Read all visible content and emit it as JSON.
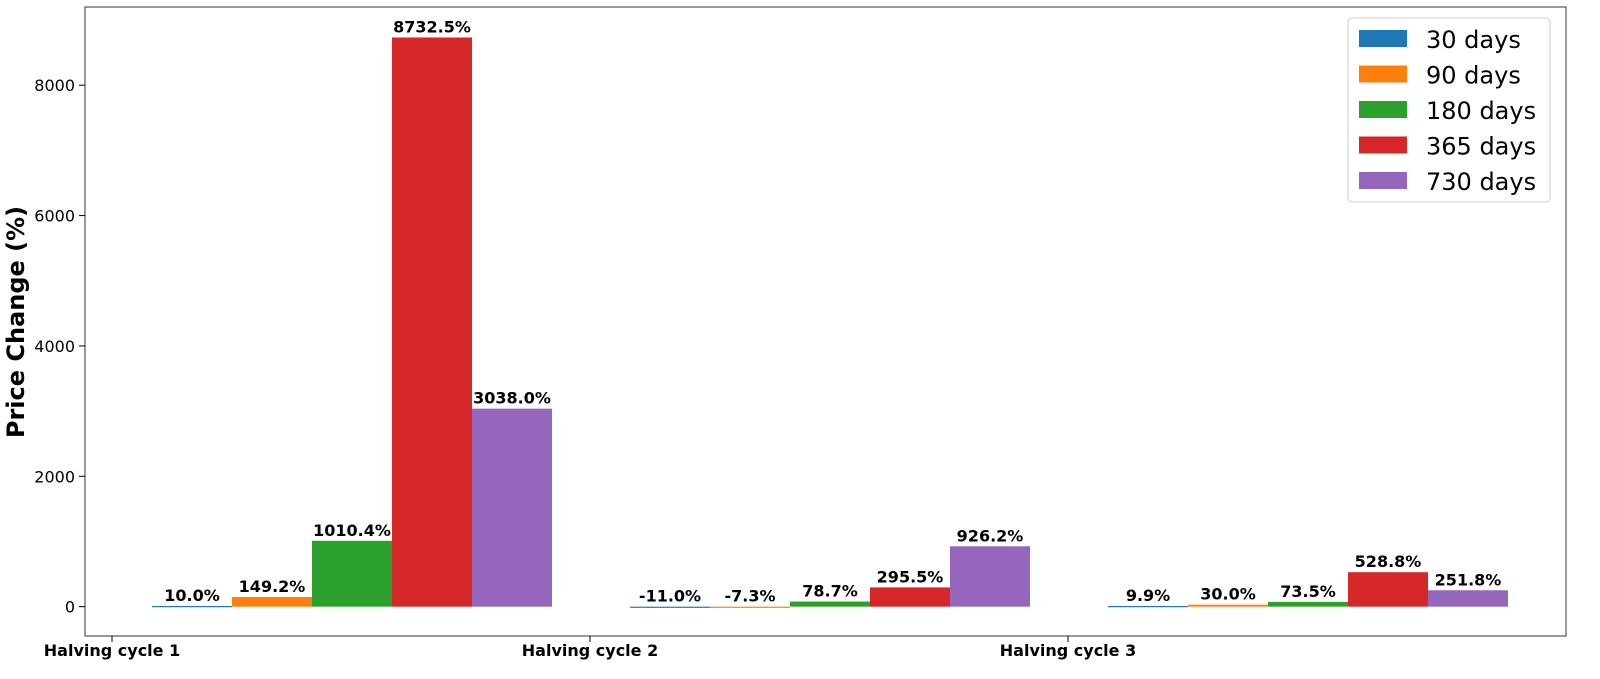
{
  "chart_data": {
    "type": "bar",
    "title": "",
    "xlabel": "",
    "ylabel": "Price Change (%)",
    "categories": [
      "Halving cycle 1",
      "Halving cycle 2",
      "Halving cycle 3"
    ],
    "ylim": [
      -450,
      9200
    ],
    "yticks": [
      0,
      2000,
      4000,
      6000,
      8000
    ],
    "grid": false,
    "legend_position": "top-right",
    "series": [
      {
        "name": "30 days",
        "color": "#1f77b4",
        "values": [
          10.0,
          -11.0,
          9.9
        ],
        "labels": [
          "10.0%",
          "-11.0%",
          "9.9%"
        ]
      },
      {
        "name": "90 days",
        "color": "#ff7f0e",
        "values": [
          149.2,
          -7.3,
          30.0
        ],
        "labels": [
          "149.2%",
          "-7.3%",
          "30.0%"
        ]
      },
      {
        "name": "180 days",
        "color": "#2ca02c",
        "values": [
          1010.4,
          78.7,
          73.5
        ],
        "labels": [
          "1010.4%",
          "78.7%",
          "73.5%"
        ]
      },
      {
        "name": "365 days",
        "color": "#d62728",
        "values": [
          8732.5,
          295.5,
          528.8
        ],
        "labels": [
          "8732.5%",
          "295.5%",
          "528.8%"
        ]
      },
      {
        "name": "730 days",
        "color": "#9467bd",
        "values": [
          3038.0,
          926.2,
          251.8
        ],
        "labels": [
          "3038.0%",
          "926.2%",
          "251.8%"
        ]
      }
    ]
  }
}
